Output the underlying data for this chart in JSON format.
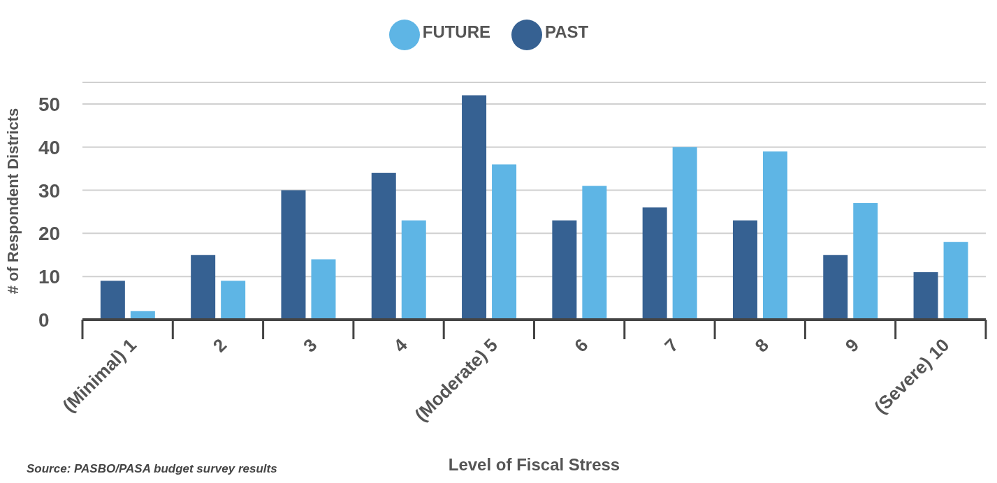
{
  "chart_data": {
    "type": "bar",
    "xlabel": "Level of Fiscal Stress",
    "ylabel": "# of Respondent Districts",
    "categories": [
      "(Minimal) 1",
      "2",
      "3",
      "4",
      "(Moderate) 5",
      "6",
      "7",
      "8",
      "9",
      "(Severe) 10"
    ],
    "series": [
      {
        "name": "PAST",
        "color": "#366192",
        "values": [
          9,
          15,
          30,
          34,
          52,
          23,
          26,
          23,
          15,
          11
        ]
      },
      {
        "name": "FUTURE",
        "color": "#5eb5e5",
        "values": [
          2,
          9,
          14,
          23,
          36,
          31,
          40,
          39,
          27,
          18
        ]
      }
    ],
    "ylim": [
      0,
      55
    ],
    "yticks": [
      0,
      10,
      20,
      30,
      40,
      50
    ],
    "grid": "y",
    "legend": "top",
    "annotations": [
      "Source: PASBO/PASA budget survey results"
    ]
  }
}
